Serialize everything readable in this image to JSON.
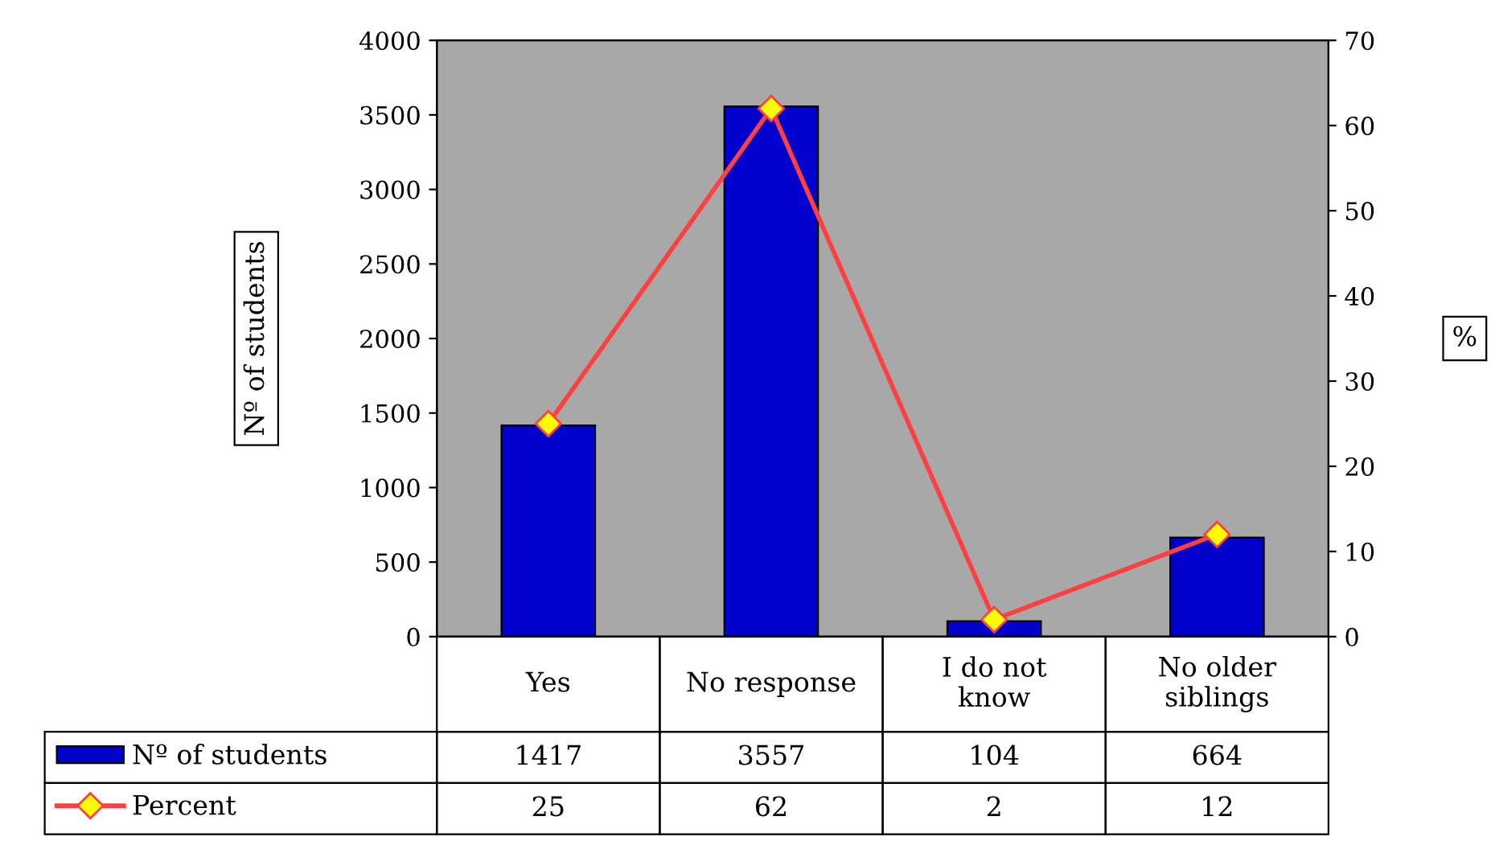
{
  "chart_data": {
    "type": "bar",
    "categories": [
      "Yes",
      "No response",
      "I do not\nknow",
      "No older\nsiblings"
    ],
    "series": [
      {
        "name": "Nº of students",
        "type": "bar",
        "color": "#0000cc",
        "values": [
          1417,
          3557,
          104,
          664
        ]
      },
      {
        "name": "Percent",
        "type": "line",
        "axis": "y2",
        "color": "#ff4040",
        "marker": "diamond",
        "values": [
          25,
          62,
          2,
          12
        ]
      }
    ],
    "ylabel": "Nº of students",
    "y2label": "%",
    "ylim": [
      0,
      4000
    ],
    "yticks": [
      0,
      500,
      1000,
      1500,
      2000,
      2500,
      3000,
      3500,
      4000
    ],
    "y2lim": [
      0,
      70
    ],
    "y2ticks": [
      0,
      10,
      20,
      30,
      40,
      50,
      60,
      70
    ],
    "data_labels": true,
    "legend": "bottom",
    "grid": false
  }
}
